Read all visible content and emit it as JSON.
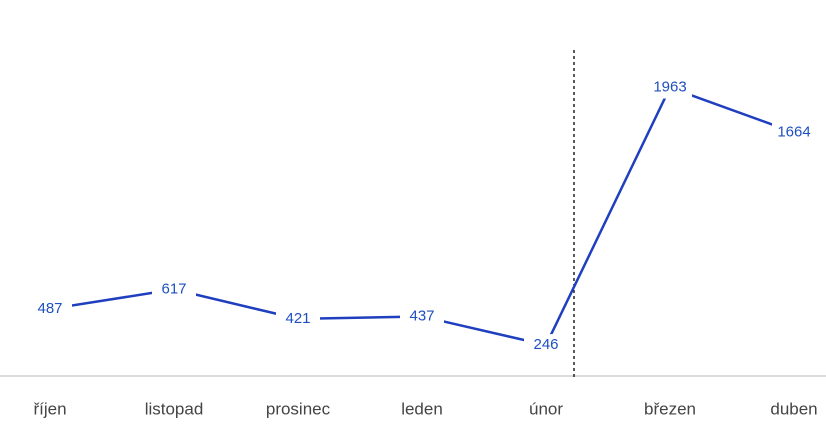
{
  "chart_data": {
    "type": "line",
    "categories": [
      "říjen",
      "listopad",
      "prosinec",
      "leden",
      "únor",
      "březen",
      "duben"
    ],
    "series": [
      {
        "color": "#1f3fbf",
        "values": [
          487,
          617,
          421,
          437,
          246,
          1963,
          1664
        ]
      }
    ],
    "ylim": [
      0,
      2500
    ]
  }
}
